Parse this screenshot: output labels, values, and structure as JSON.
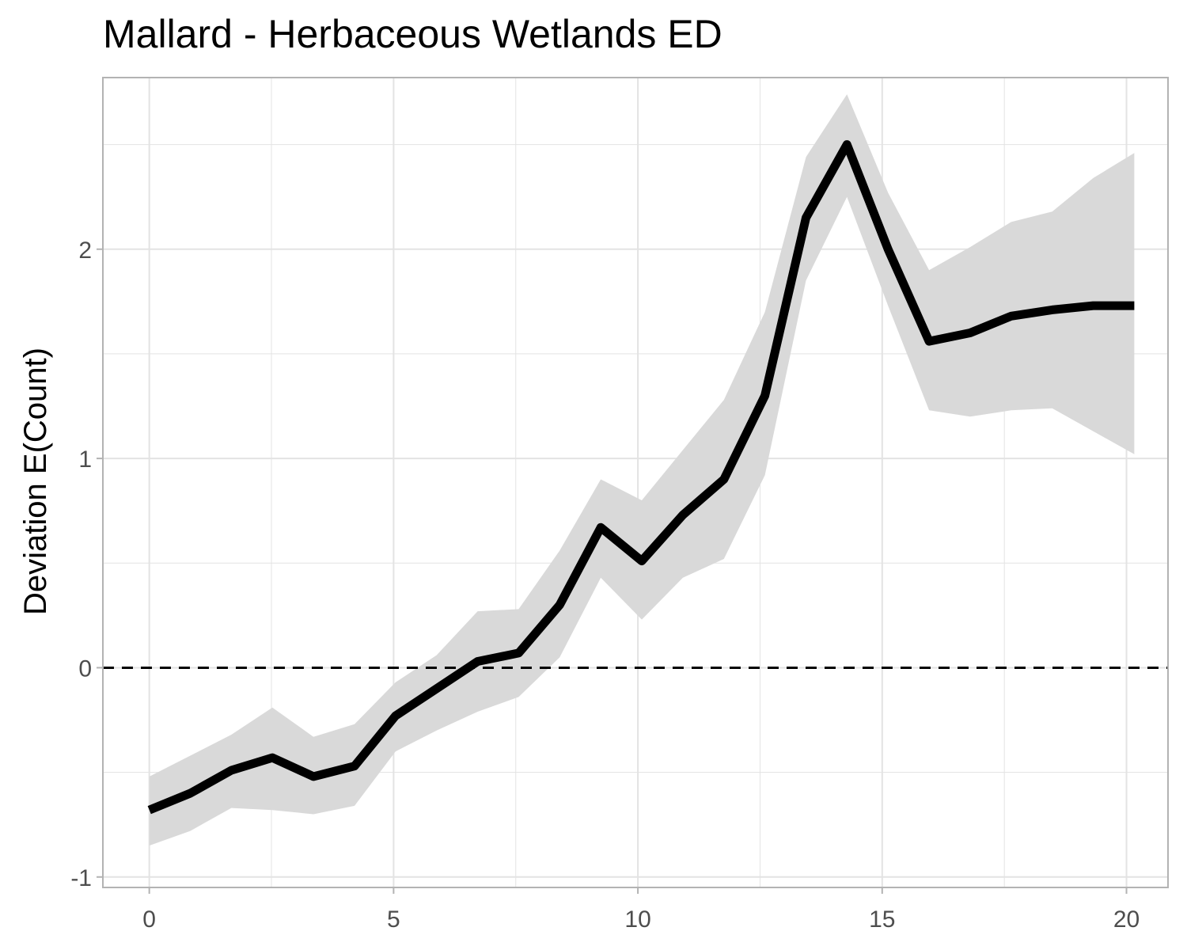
{
  "chart_data": {
    "type": "line",
    "title": "Mallard - Herbaceous Wetlands ED",
    "xlabel": "",
    "ylabel": "Deviation E(Count)",
    "xlim": [
      -0.95,
      20.85
    ],
    "ylim": [
      -1.05,
      2.82
    ],
    "x_ticks": [
      0,
      5,
      10,
      15,
      20
    ],
    "y_ticks": [
      -1,
      0,
      1,
      2
    ],
    "x_minor": [
      2.5,
      7.5,
      12.5,
      17.5
    ],
    "y_minor": [
      -0.5,
      0.5,
      1.5,
      2.5
    ],
    "grid": true,
    "reference_line": {
      "y": 0,
      "style": "dashed"
    },
    "series": [
      {
        "type": "line",
        "x": [
          0,
          0.84,
          1.68,
          2.52,
          3.36,
          4.2,
          5.04,
          5.88,
          6.72,
          7.56,
          8.4,
          9.24,
          10.08,
          10.92,
          11.76,
          12.6,
          13.44,
          14.28,
          15.12,
          15.96,
          16.8,
          17.64,
          18.48,
          19.32,
          20.16
        ],
        "y": [
          -0.68,
          -0.6,
          -0.49,
          -0.43,
          -0.52,
          -0.47,
          -0.23,
          -0.1,
          0.03,
          0.07,
          0.3,
          0.67,
          0.51,
          0.73,
          0.9,
          1.3,
          2.15,
          2.5,
          2.0,
          1.56,
          1.6,
          1.68,
          1.71,
          1.73,
          1.73
        ]
      },
      {
        "type": "band",
        "x": [
          0,
          0.84,
          1.68,
          2.52,
          3.36,
          4.2,
          5.04,
          5.88,
          6.72,
          7.56,
          8.4,
          9.24,
          10.08,
          10.92,
          11.76,
          12.6,
          13.44,
          14.28,
          15.12,
          15.96,
          16.8,
          17.64,
          18.48,
          19.32,
          20.16
        ],
        "lower": [
          -0.85,
          -0.78,
          -0.67,
          -0.68,
          -0.7,
          -0.66,
          -0.4,
          -0.3,
          -0.21,
          -0.14,
          0.05,
          0.43,
          0.23,
          0.43,
          0.52,
          0.92,
          1.85,
          2.25,
          1.73,
          1.23,
          1.2,
          1.23,
          1.24,
          1.13,
          1.02
        ],
        "upper": [
          -0.52,
          -0.42,
          -0.32,
          -0.19,
          -0.33,
          -0.27,
          -0.07,
          0.06,
          0.27,
          0.28,
          0.56,
          0.9,
          0.8,
          1.04,
          1.28,
          1.7,
          2.44,
          2.74,
          2.27,
          1.9,
          2.01,
          2.13,
          2.18,
          2.34,
          2.46
        ]
      }
    ],
    "colors": {
      "line": "#000000",
      "band": "#d9d9d9",
      "grid": "#e3e3e3",
      "panel_border": "#b3b3b3",
      "tick_label": "#4d4d4d"
    }
  }
}
